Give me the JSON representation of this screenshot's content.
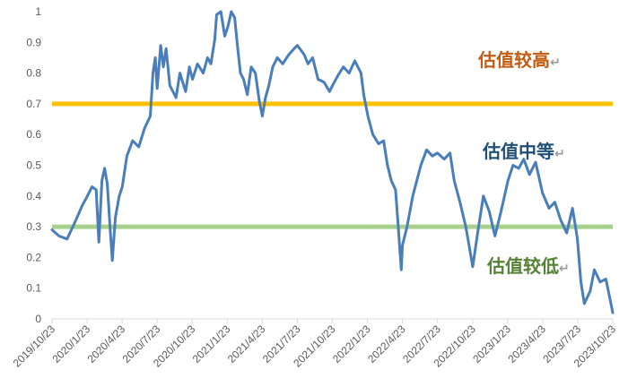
{
  "chart_data": {
    "type": "line",
    "title": "",
    "xlabel": "",
    "ylabel": "",
    "ylim": [
      0,
      1
    ],
    "yticks": [
      "0",
      "0.1",
      "0.2",
      "0.3",
      "0.4",
      "0.5",
      "0.6",
      "0.7",
      "0.8",
      "0.9",
      "1"
    ],
    "xticks": [
      "2019/10/23",
      "2020/1/23",
      "2020/4/23",
      "2020/7/23",
      "2020/10/23",
      "2021/1/23",
      "2021/4/23",
      "2021/7/23",
      "2021/10/23",
      "2022/1/23",
      "2022/4/23",
      "2022/7/23",
      "2022/10/23",
      "2023/1/23",
      "2023/4/23",
      "2023/7/23",
      "2023/10/23"
    ],
    "grid": false,
    "legend": "none",
    "series": [
      {
        "color": "#4a7ebb",
        "points": [
          [
            "2019-10-23",
            0.29
          ],
          [
            "2019-11-10",
            0.27
          ],
          [
            "2019-12-01",
            0.26
          ],
          [
            "2019-12-20",
            0.31
          ],
          [
            "2020-01-10",
            0.37
          ],
          [
            "2020-01-23",
            0.4
          ],
          [
            "2020-02-04",
            0.43
          ],
          [
            "2020-02-15",
            0.42
          ],
          [
            "2020-02-22",
            0.25
          ],
          [
            "2020-03-01",
            0.45
          ],
          [
            "2020-03-08",
            0.49
          ],
          [
            "2020-03-15",
            0.44
          ],
          [
            "2020-03-22",
            0.3
          ],
          [
            "2020-03-28",
            0.19
          ],
          [
            "2020-04-05",
            0.33
          ],
          [
            "2020-04-15",
            0.4
          ],
          [
            "2020-04-23",
            0.43
          ],
          [
            "2020-05-05",
            0.53
          ],
          [
            "2020-05-20",
            0.58
          ],
          [
            "2020-06-05",
            0.56
          ],
          [
            "2020-06-20",
            0.62
          ],
          [
            "2020-07-05",
            0.66
          ],
          [
            "2020-07-12",
            0.8
          ],
          [
            "2020-07-18",
            0.85
          ],
          [
            "2020-07-23",
            0.75
          ],
          [
            "2020-08-01",
            0.89
          ],
          [
            "2020-08-08",
            0.82
          ],
          [
            "2020-08-15",
            0.88
          ],
          [
            "2020-08-25",
            0.76
          ],
          [
            "2020-09-10",
            0.72
          ],
          [
            "2020-09-20",
            0.8
          ],
          [
            "2020-10-05",
            0.74
          ],
          [
            "2020-10-15",
            0.82
          ],
          [
            "2020-10-23",
            0.78
          ],
          [
            "2020-11-05",
            0.83
          ],
          [
            "2020-11-20",
            0.8
          ],
          [
            "2020-12-01",
            0.85
          ],
          [
            "2020-12-10",
            0.83
          ],
          [
            "2020-12-20",
            0.91
          ],
          [
            "2020-12-25",
            0.99
          ],
          [
            "2021-01-05",
            1.0
          ],
          [
            "2021-01-15",
            0.92
          ],
          [
            "2021-01-23",
            0.95
          ],
          [
            "2021-02-01",
            1.0
          ],
          [
            "2021-02-10",
            0.98
          ],
          [
            "2021-02-18",
            0.88
          ],
          [
            "2021-02-25",
            0.8
          ],
          [
            "2021-03-05",
            0.78
          ],
          [
            "2021-03-15",
            0.73
          ],
          [
            "2021-03-25",
            0.82
          ],
          [
            "2021-04-05",
            0.8
          ],
          [
            "2021-04-15",
            0.71
          ],
          [
            "2021-04-23",
            0.66
          ],
          [
            "2021-05-01",
            0.72
          ],
          [
            "2021-05-10",
            0.76
          ],
          [
            "2021-05-20",
            0.82
          ],
          [
            "2021-06-01",
            0.85
          ],
          [
            "2021-06-15",
            0.83
          ],
          [
            "2021-07-01",
            0.86
          ],
          [
            "2021-07-15",
            0.88
          ],
          [
            "2021-07-23",
            0.89
          ],
          [
            "2021-08-10",
            0.86
          ],
          [
            "2021-08-20",
            0.83
          ],
          [
            "2021-09-01",
            0.85
          ],
          [
            "2021-09-15",
            0.78
          ],
          [
            "2021-10-01",
            0.77
          ],
          [
            "2021-10-15",
            0.74
          ],
          [
            "2021-10-23",
            0.76
          ],
          [
            "2021-11-05",
            0.79
          ],
          [
            "2021-11-20",
            0.82
          ],
          [
            "2021-12-05",
            0.8
          ],
          [
            "2021-12-20",
            0.84
          ],
          [
            "2022-01-05",
            0.8
          ],
          [
            "2022-01-12",
            0.73
          ],
          [
            "2022-01-23",
            0.66
          ],
          [
            "2022-02-05",
            0.6
          ],
          [
            "2022-02-20",
            0.57
          ],
          [
            "2022-03-05",
            0.58
          ],
          [
            "2022-03-15",
            0.5
          ],
          [
            "2022-03-25",
            0.45
          ],
          [
            "2022-04-05",
            0.42
          ],
          [
            "2022-04-12",
            0.3
          ],
          [
            "2022-04-20",
            0.16
          ],
          [
            "2022-04-23",
            0.24
          ],
          [
            "2022-05-05",
            0.3
          ],
          [
            "2022-05-20",
            0.4
          ],
          [
            "2022-06-10",
            0.5
          ],
          [
            "2022-06-25",
            0.55
          ],
          [
            "2022-07-10",
            0.53
          ],
          [
            "2022-07-23",
            0.54
          ],
          [
            "2022-08-10",
            0.52
          ],
          [
            "2022-08-25",
            0.54
          ],
          [
            "2022-09-05",
            0.45
          ],
          [
            "2022-09-20",
            0.38
          ],
          [
            "2022-10-05",
            0.3
          ],
          [
            "2022-10-15",
            0.23
          ],
          [
            "2022-10-23",
            0.17
          ],
          [
            "2022-11-05",
            0.28
          ],
          [
            "2022-11-20",
            0.4
          ],
          [
            "2022-12-05",
            0.35
          ],
          [
            "2022-12-20",
            0.27
          ],
          [
            "2023-01-05",
            0.35
          ],
          [
            "2023-01-23",
            0.45
          ],
          [
            "2023-02-05",
            0.5
          ],
          [
            "2023-02-20",
            0.49
          ],
          [
            "2023-03-05",
            0.52
          ],
          [
            "2023-03-20",
            0.47
          ],
          [
            "2023-04-05",
            0.51
          ],
          [
            "2023-04-23",
            0.41
          ],
          [
            "2023-05-10",
            0.36
          ],
          [
            "2023-05-25",
            0.38
          ],
          [
            "2023-06-10",
            0.32
          ],
          [
            "2023-06-25",
            0.28
          ],
          [
            "2023-07-10",
            0.36
          ],
          [
            "2023-07-18",
            0.3
          ],
          [
            "2023-07-23",
            0.26
          ],
          [
            "2023-08-01",
            0.12
          ],
          [
            "2023-08-10",
            0.05
          ],
          [
            "2023-08-25",
            0.09
          ],
          [
            "2023-09-05",
            0.16
          ],
          [
            "2023-09-20",
            0.12
          ],
          [
            "2023-10-05",
            0.13
          ],
          [
            "2023-10-15",
            0.07
          ],
          [
            "2023-10-23",
            0.02
          ]
        ]
      }
    ],
    "reference_lines": [
      {
        "y": 0.7,
        "color": "#ffc000"
      },
      {
        "y": 0.3,
        "color": "#a9d18e"
      }
    ],
    "annotations": [
      {
        "text": "估值较高",
        "arrow": "↵",
        "color": "#c55a11"
      },
      {
        "text": "估值中等",
        "arrow": "↵",
        "color": "#1f4e79"
      },
      {
        "text": "估值较低",
        "arrow": "↵",
        "color": "#548235"
      }
    ]
  }
}
